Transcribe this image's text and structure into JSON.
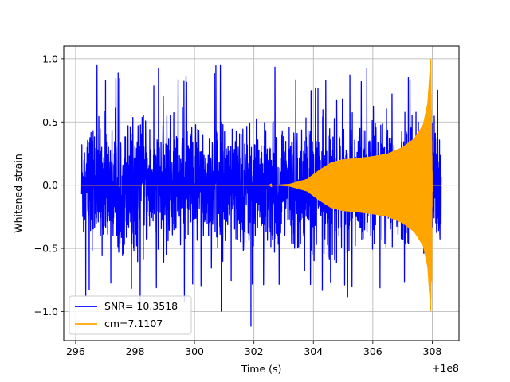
{
  "chart_data": {
    "type": "line",
    "xlabel": "Time (s)",
    "ylabel": "Whitened strain",
    "x_offset_label": "+1e8",
    "xlim": [
      295.6,
      308.9
    ],
    "ylim": [
      -1.23,
      1.1
    ],
    "x_ticks": [
      296,
      298,
      300,
      302,
      304,
      306,
      308
    ],
    "x_tick_labels": [
      "296",
      "298",
      "300",
      "302",
      "304",
      "306",
      "308"
    ],
    "y_ticks": [
      -1.0,
      -0.5,
      0.0,
      0.5,
      1.0
    ],
    "y_tick_labels": [
      "−1.0",
      "−0.5",
      "0.0",
      "0.5",
      "1.0"
    ],
    "grid": true,
    "legend_position": "lower-left",
    "series": [
      {
        "name": "SNR= 10.3518",
        "color": "#0000ff",
        "kind": "noise",
        "x_range": [
          296.2,
          308.3
        ],
        "peak_max": 1.0,
        "peak_min": -1.12,
        "typical_envelope": 0.6
      },
      {
        "name": "cm=7.1107",
        "color": "#ffa500",
        "kind": "chirp",
        "x_range": [
          296.2,
          308.3
        ],
        "envelope": [
          [
            296.2,
            0.0
          ],
          [
            302.5,
            0.0
          ],
          [
            303.2,
            0.01
          ],
          [
            303.8,
            0.05
          ],
          [
            304.2,
            0.12
          ],
          [
            304.6,
            0.18
          ],
          [
            305.0,
            0.205
          ],
          [
            305.5,
            0.215
          ],
          [
            306.0,
            0.23
          ],
          [
            306.5,
            0.25
          ],
          [
            307.0,
            0.3
          ],
          [
            307.4,
            0.37
          ],
          [
            307.7,
            0.48
          ],
          [
            307.85,
            0.65
          ],
          [
            307.95,
            1.0
          ],
          [
            308.0,
            0.0
          ],
          [
            308.3,
            0.0
          ]
        ]
      }
    ]
  }
}
